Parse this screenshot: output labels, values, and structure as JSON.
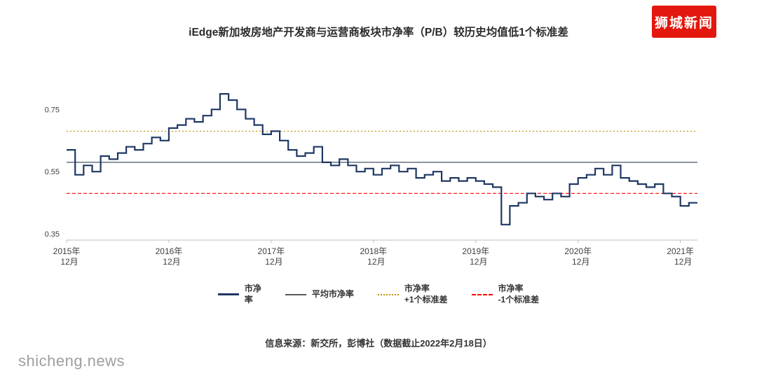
{
  "badge": {
    "text": "狮城新闻"
  },
  "title": "iEdge新加坡房地产开发商与运营商板块市净率（P/B）较历史均值低1个标准差",
  "source": "信息来源：新交所，彭博社（数据截止2022年2月18日）",
  "watermark": "shicheng.news",
  "legend": {
    "items": [
      {
        "label": "市净\n率",
        "color": "#1f3864",
        "style": "solid-thick"
      },
      {
        "label": "平均市净率",
        "color": "#595959",
        "style": "solid-thin"
      },
      {
        "label": "市净率\n+1个标准差",
        "color": "#bf9000",
        "style": "dotted"
      },
      {
        "label": "市净率\n-1个标准差",
        "color": "#ff0000",
        "style": "dashed"
      }
    ]
  },
  "chart_data": {
    "type": "line",
    "title": "iEdge新加坡房地产开发商与运营商板块市净率（P/B）较历史均值低1个标准差",
    "xlabel": "",
    "ylabel": "",
    "ylim": [
      0.33,
      0.87
    ],
    "y_ticks": [
      0.35,
      0.55,
      0.75
    ],
    "grid": false,
    "legend_position": "bottom",
    "line_color": "#1f3864",
    "x": [
      "2015-12",
      "2016-01",
      "2016-02",
      "2016-03",
      "2016-04",
      "2016-05",
      "2016-06",
      "2016-07",
      "2016-08",
      "2016-09",
      "2016-10",
      "2016-11",
      "2016-12",
      "2017-01",
      "2017-02",
      "2017-03",
      "2017-04",
      "2017-05",
      "2017-06",
      "2017-07",
      "2017-08",
      "2017-09",
      "2017-10",
      "2017-11",
      "2017-12",
      "2018-01",
      "2018-02",
      "2018-03",
      "2018-04",
      "2018-05",
      "2018-06",
      "2018-07",
      "2018-08",
      "2018-09",
      "2018-10",
      "2018-11",
      "2018-12",
      "2019-01",
      "2019-02",
      "2019-03",
      "2019-04",
      "2019-05",
      "2019-06",
      "2019-07",
      "2019-08",
      "2019-09",
      "2019-10",
      "2019-11",
      "2019-12",
      "2020-01",
      "2020-02",
      "2020-03",
      "2020-04",
      "2020-05",
      "2020-06",
      "2020-07",
      "2020-08",
      "2020-09",
      "2020-10",
      "2020-11",
      "2020-12",
      "2021-01",
      "2021-02",
      "2021-03",
      "2021-04",
      "2021-05",
      "2021-06",
      "2021-07",
      "2021-08",
      "2021-09",
      "2021-10",
      "2021-11",
      "2021-12",
      "2022-01",
      "2022-02"
    ],
    "series": [
      {
        "name": "市净率",
        "values": [
          0.62,
          0.54,
          0.57,
          0.55,
          0.6,
          0.59,
          0.61,
          0.63,
          0.62,
          0.64,
          0.66,
          0.65,
          0.69,
          0.7,
          0.72,
          0.71,
          0.73,
          0.75,
          0.8,
          0.78,
          0.75,
          0.72,
          0.7,
          0.67,
          0.68,
          0.65,
          0.62,
          0.6,
          0.61,
          0.63,
          0.58,
          0.57,
          0.59,
          0.57,
          0.55,
          0.56,
          0.54,
          0.56,
          0.57,
          0.55,
          0.56,
          0.53,
          0.54,
          0.55,
          0.52,
          0.53,
          0.52,
          0.53,
          0.52,
          0.51,
          0.5,
          0.38,
          0.44,
          0.45,
          0.48,
          0.47,
          0.46,
          0.48,
          0.47,
          0.51,
          0.53,
          0.54,
          0.56,
          0.54,
          0.57,
          0.53,
          0.52,
          0.51,
          0.5,
          0.51,
          0.48,
          0.47,
          0.44,
          0.45,
          0.45
        ]
      }
    ],
    "reference_lines": [
      {
        "name": "平均市净率",
        "value": 0.58,
        "style": "solid",
        "color": "#44546a"
      },
      {
        "name": "市净率+1个标准差",
        "value": 0.68,
        "style": "dotted",
        "color": "#bf9000"
      },
      {
        "name": "市净率-1个标准差",
        "value": 0.48,
        "style": "dashed",
        "color": "#ff0000"
      }
    ],
    "x_ticks": [
      {
        "index": 0,
        "lines": [
          "2015年",
          "12月"
        ]
      },
      {
        "index": 12,
        "lines": [
          "2016年",
          "12月"
        ]
      },
      {
        "index": 24,
        "lines": [
          "2017年",
          "12月"
        ]
      },
      {
        "index": 36,
        "lines": [
          "2018年",
          "12月"
        ]
      },
      {
        "index": 48,
        "lines": [
          "2019年",
          "12月"
        ]
      },
      {
        "index": 60,
        "lines": [
          "2020年",
          "12月"
        ]
      },
      {
        "index": 72,
        "lines": [
          "2021年",
          "12月"
        ]
      }
    ]
  }
}
